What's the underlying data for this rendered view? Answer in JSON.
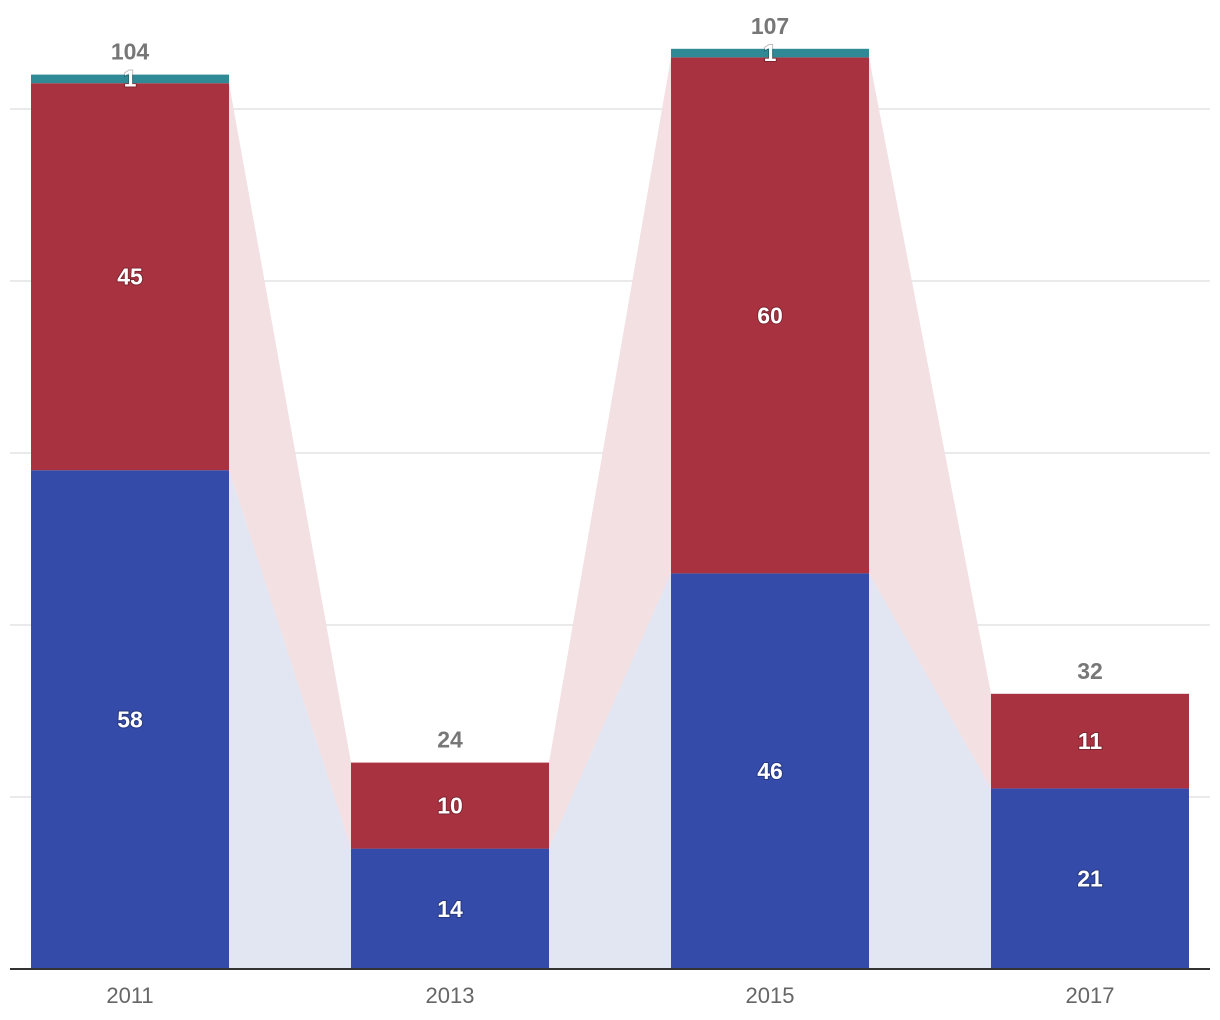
{
  "chart_data": {
    "type": "bar",
    "stacked": true,
    "categories": [
      "2011",
      "2013",
      "2015",
      "2017"
    ],
    "series": [
      {
        "values": [
          58,
          14,
          46,
          21
        ],
        "color": "#344ba9"
      },
      {
        "values": [
          45,
          10,
          60,
          11
        ],
        "color": "#a83240"
      },
      {
        "values": [
          1,
          0,
          1,
          0
        ],
        "color": "#2f8a96"
      }
    ],
    "totals": [
      "104",
      "24",
      "107",
      "32"
    ],
    "ylim": [
      0,
      107
    ],
    "grid": true,
    "legend": "none",
    "title": "",
    "xlabel": "",
    "ylabel": ""
  }
}
